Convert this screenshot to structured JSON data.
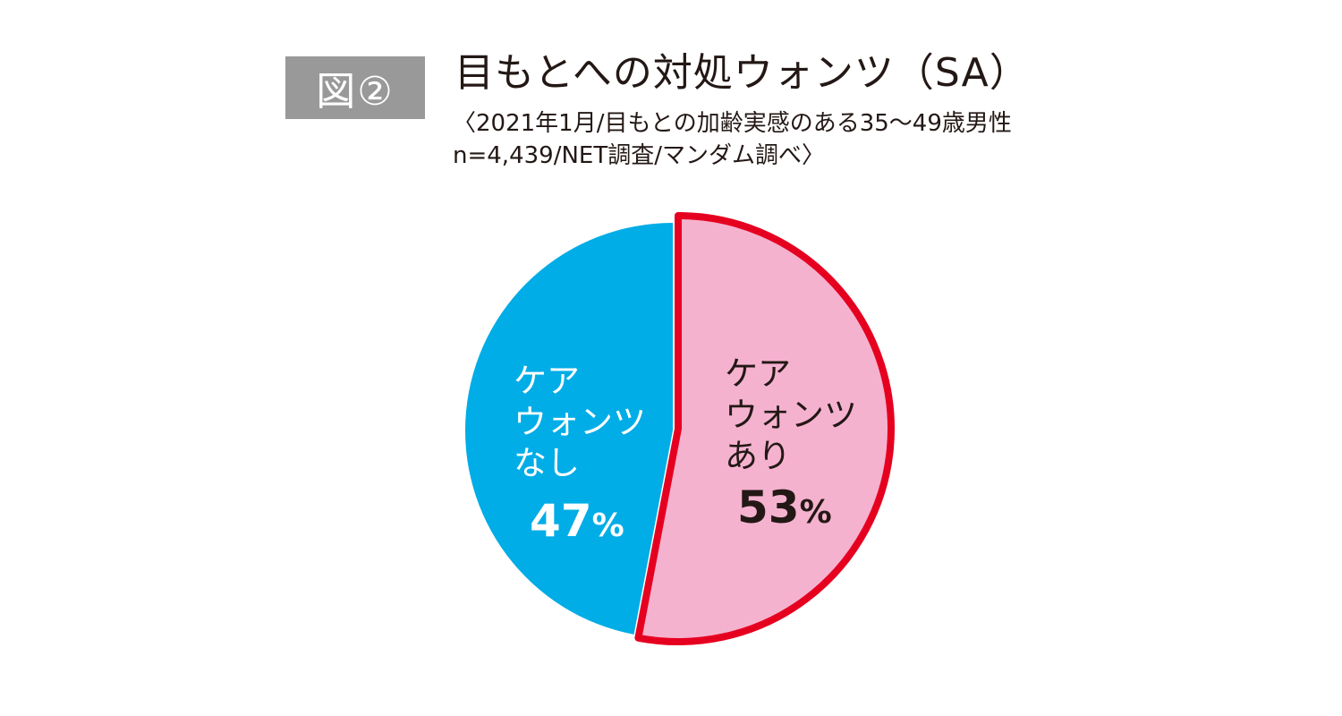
{
  "figure_badge": "図②",
  "title": "目もとへの対処ウォンツ（SA）",
  "subtitle_lines": [
    "〈2021年1月/目もとの加齢実感のある35〜49歳男性",
    "n=4,439/NET調査/マンダム調べ〉"
  ],
  "colors": {
    "nashi_fill": "#00ADE6",
    "ari_fill": "#F5B2CF",
    "ari_stroke": "#E60020",
    "badge_bg": "#999999",
    "text_dark": "#231815",
    "text_light": "#FFFFFF"
  },
  "chart_data": {
    "type": "pie",
    "title": "目もとへの対処ウォンツ（SA）",
    "unit": "%",
    "slices": [
      {
        "label_lines": [
          "ケア",
          "ウォンツ",
          "あり"
        ],
        "value": 53,
        "value_label": "53",
        "highlighted": true
      },
      {
        "label_lines": [
          "ケア",
          "ウォンツ",
          "なし"
        ],
        "value": 47,
        "value_label": "47",
        "highlighted": false
      }
    ],
    "percent_sign": "%"
  }
}
